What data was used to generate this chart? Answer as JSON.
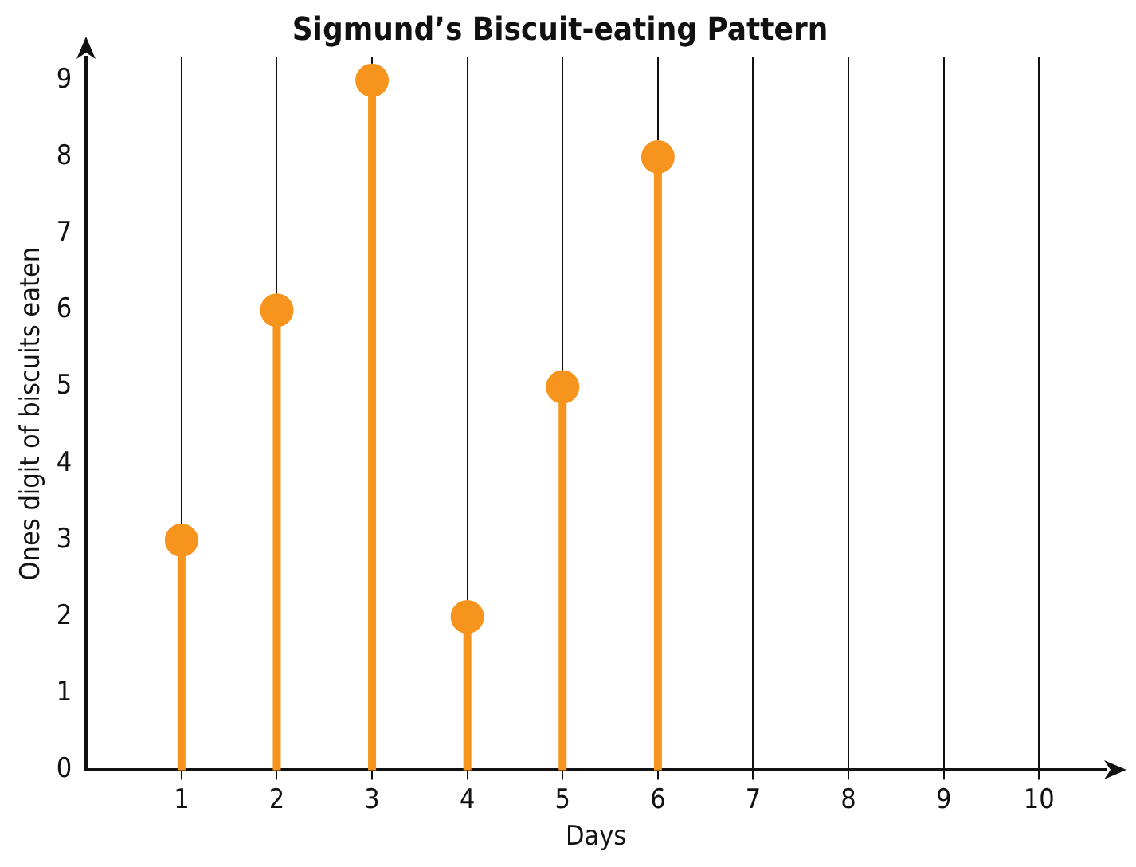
{
  "chart_data": {
    "type": "lollipop",
    "title": "Sigmund’s Biscuit-eating Pattern",
    "xlabel": "Days",
    "ylabel": "Ones digit of biscuits eaten",
    "x": [
      1,
      2,
      3,
      4,
      5,
      6
    ],
    "series": [
      {
        "color": "#f7941d",
        "values": [
          3,
          6,
          9,
          2,
          5,
          8
        ]
      }
    ],
    "xlim": [
      0,
      10.7
    ],
    "xticks": [
      1,
      2,
      3,
      4,
      5,
      6,
      7,
      8,
      9,
      10
    ],
    "ylim": [
      0,
      9.3
    ],
    "yticks": [
      0,
      1,
      2,
      3,
      4,
      5,
      6,
      7,
      8,
      9
    ],
    "grid": "x",
    "marker": "circle",
    "legend": false
  }
}
